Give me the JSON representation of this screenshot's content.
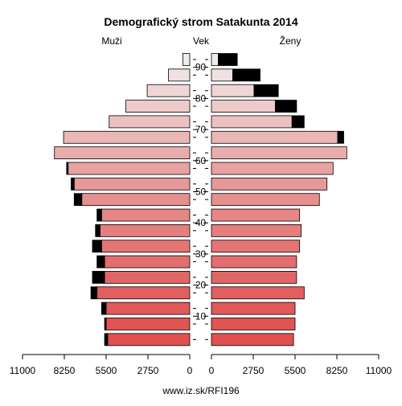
{
  "chart_data": {
    "type": "bar",
    "title": "Demografický strom Satakunta 2014",
    "left_label": "Muži",
    "center_label": "Vek",
    "right_label": "Ženy",
    "footer": "www.iz.sk/RFI196",
    "x_max": 11000,
    "x_ticks": [
      0,
      2750,
      5500,
      8250,
      11000
    ],
    "age_ticks": [
      10,
      20,
      30,
      40,
      50,
      60,
      70,
      80,
      90
    ],
    "series_colors": {
      "pyramid_fill": "#e05050",
      "surplus": "#000000",
      "outline": "#000000"
    },
    "age_groups": [
      "0-4",
      "5-9",
      "10-14",
      "15-19",
      "20-24",
      "25-29",
      "30-34",
      "35-39",
      "40-44",
      "45-49",
      "50-54",
      "55-59",
      "60-64",
      "65-69",
      "70-74",
      "75-79",
      "80-84",
      "85-89",
      "90+"
    ],
    "male": [
      5600,
      5600,
      5800,
      6500,
      6400,
      6100,
      6400,
      6200,
      6100,
      7600,
      7800,
      8100,
      8900,
      8300,
      5300,
      4200,
      2800,
      1400,
      450
    ],
    "female": [
      5400,
      5500,
      5500,
      6100,
      5600,
      5600,
      5800,
      5900,
      5800,
      7100,
      7600,
      8000,
      8900,
      8700,
      6100,
      5600,
      4400,
      3200,
      1700
    ]
  }
}
